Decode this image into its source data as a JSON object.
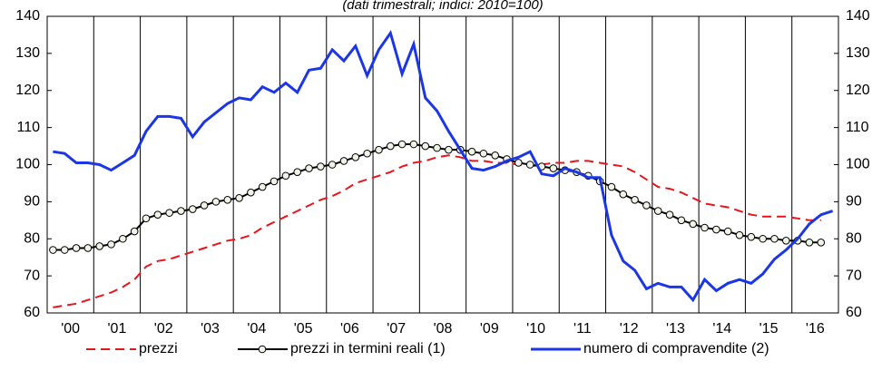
{
  "chart_data": {
    "type": "line",
    "subtitle": "(dati trimestrali; indici: 2010=100)",
    "x": [
      "'00",
      null,
      null,
      null,
      "'01",
      null,
      null,
      null,
      "'02",
      null,
      null,
      null,
      "'03",
      null,
      null,
      null,
      "'04",
      null,
      null,
      null,
      "'05",
      null,
      null,
      null,
      "'06",
      null,
      null,
      null,
      "'07",
      null,
      null,
      null,
      "'08",
      null,
      null,
      null,
      "'09",
      null,
      null,
      null,
      "'10",
      null,
      null,
      null,
      "'11",
      null,
      null,
      null,
      "'12",
      null,
      null,
      null,
      "'13",
      null,
      null,
      null,
      "'14",
      null,
      null,
      null,
      "'15",
      null,
      null,
      null,
      "'16",
      null,
      null,
      null
    ],
    "series": [
      {
        "name": "prezzi",
        "color": "#e8141b",
        "dashed": true,
        "values": [
          61.5,
          62,
          62.5,
          63.5,
          64.5,
          65.5,
          67,
          69,
          72.5,
          74,
          74.5,
          75.5,
          76.5,
          77.5,
          78.5,
          79.5,
          80,
          81,
          83,
          84.5,
          86,
          87.5,
          89,
          90.5,
          91.5,
          93,
          95,
          96,
          97,
          98,
          99.5,
          100.5,
          101,
          102,
          102.5,
          102,
          101,
          101,
          100.5,
          100.5,
          100,
          99.5,
          100,
          100.5,
          100.5,
          101,
          101,
          100.5,
          100,
          99.5,
          98,
          96,
          94,
          93.5,
          92.5,
          91,
          89.5,
          89,
          88.5,
          87.5,
          86.5,
          86,
          86,
          86,
          85.5,
          85,
          85,
          null
        ]
      },
      {
        "name": "prezzi in termini reali (1)",
        "color": "#000000",
        "markers": true,
        "values": [
          77,
          77,
          77.5,
          77.5,
          78,
          78.5,
          80,
          82,
          85.5,
          86.5,
          87,
          87.5,
          88,
          89,
          90,
          90.5,
          91,
          92.5,
          94,
          95.5,
          97,
          98,
          99,
          99.5,
          100,
          101,
          102,
          103,
          104,
          105,
          105.5,
          105.5,
          105,
          104.5,
          104,
          104,
          103.5,
          103,
          102.5,
          101.5,
          100.5,
          100,
          99.5,
          99,
          98.5,
          98,
          97,
          95.5,
          94,
          92,
          90.5,
          89,
          87.5,
          86.5,
          85,
          84,
          83,
          82.5,
          82,
          81,
          80.5,
          80,
          80,
          79.5,
          79.5,
          79,
          79,
          null
        ]
      },
      {
        "name": "numero di compravendite (2)",
        "color": "#1a36e6",
        "width": 3,
        "values": [
          103.5,
          103,
          100.5,
          100.5,
          100,
          98.5,
          100.5,
          102.5,
          109,
          113,
          113,
          112.5,
          107.5,
          111.5,
          114,
          116.5,
          118,
          117.5,
          121,
          119.5,
          122,
          119.5,
          125.5,
          126,
          131,
          128,
          132,
          124,
          131,
          135.5,
          124.5,
          132.5,
          118,
          114.5,
          109,
          104,
          99,
          98.5,
          99.5,
          101,
          102,
          103.5,
          97.5,
          97,
          99,
          98,
          96.5,
          96.5,
          81,
          74,
          71.5,
          66.5,
          68,
          67,
          67,
          63.5,
          69,
          66,
          68,
          69,
          68,
          70.5,
          74.5,
          77,
          80,
          84,
          86.5,
          87.5
        ]
      }
    ],
    "ylim": [
      60,
      140
    ],
    "yticks": [
      60,
      70,
      80,
      90,
      100,
      110,
      120,
      130,
      140
    ],
    "y2lim": [
      60,
      140
    ],
    "y2ticks": [
      60,
      70,
      80,
      90,
      100,
      110,
      120,
      130,
      140
    ]
  }
}
